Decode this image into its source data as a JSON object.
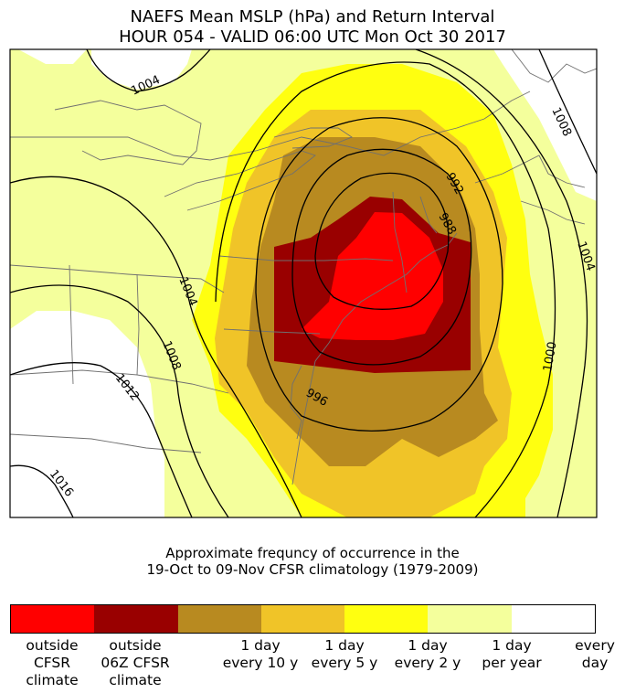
{
  "title": {
    "line1": "NAEFS Mean MSLP (hPa) and Return Interval",
    "line2": "HOUR 054 - VALID 06:00 UTC Mon Oct 30 2017"
  },
  "colors": {
    "outside_cfsr": "#ff0000",
    "outside_06z": "#990000",
    "every_10y": "#b88a20",
    "every_5y": "#f0c428",
    "every_2y": "#ffff10",
    "per_year": "#f4ff9c",
    "every_day": "#ffffff"
  },
  "contours": {
    "c1004_nw": "1004",
    "c1008_ne": "1008",
    "c992": "992",
    "c988": "988",
    "c1004_e": "1004",
    "c1004_w": "1004",
    "c1008_w": "1008",
    "c1000": "1000",
    "c996": "996",
    "c1012": "1012",
    "c1016": "1016"
  },
  "caption": {
    "line1": "Approximate frequncy of occurrence in the",
    "line2": "19-Oct to 09-Nov CFSR climatology (1979-2009)"
  },
  "colorbar": {
    "segments": [
      {
        "name": "outside CFSR climate",
        "color": "#ff0000"
      },
      {
        "name": "outside 06Z CFSR climate",
        "color": "#990000"
      },
      {
        "name": "1 day every 10 y",
        "color": "#b88a20"
      },
      {
        "name": "1 day every 5 y",
        "color": "#f0c428"
      },
      {
        "name": "1 day every 2 y",
        "color": "#ffff10"
      },
      {
        "name": "1 day per year",
        "color": "#f4ff9c"
      },
      {
        "name": "every day",
        "color": "#ffffff"
      }
    ],
    "labels": {
      "outside_cfsr": [
        "outside",
        "CFSR",
        "climate"
      ],
      "outside_06z": [
        "outside",
        "06Z CFSR",
        "climate"
      ],
      "every_10y": [
        "1 day",
        "every 10 y"
      ],
      "every_5y": [
        "1 day",
        "every 5 y"
      ],
      "every_2y": [
        "1 day",
        "every 2 y"
      ],
      "per_year": [
        "1 day",
        "per year"
      ],
      "every_day": [
        "every",
        "day"
      ]
    }
  }
}
